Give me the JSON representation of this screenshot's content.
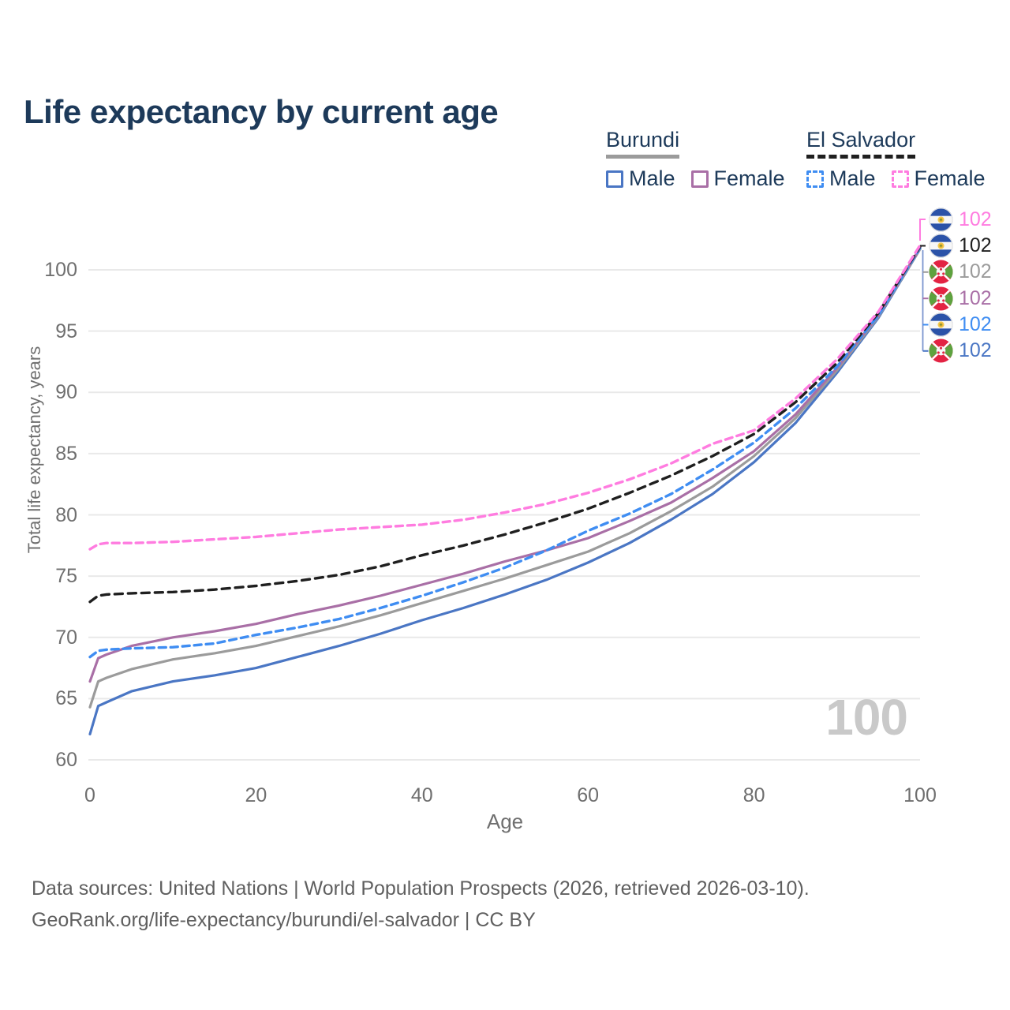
{
  "title": "Life expectancy by current age",
  "legend": {
    "groups": [
      {
        "label": "Burundi",
        "line_style": "solid",
        "line_color": "#9b9b9b",
        "items": [
          {
            "label": "Male",
            "color": "#4a76c4",
            "style": "solid"
          },
          {
            "label": "Female",
            "color": "#a96fa6",
            "style": "solid"
          }
        ]
      },
      {
        "label": "El Salvador",
        "line_style": "dashed",
        "line_color": "#1f1f1f",
        "items": [
          {
            "label": "Male",
            "color": "#3f8df2",
            "style": "dashed"
          },
          {
            "label": "Female",
            "color": "#ff7ce0",
            "style": "dashed"
          }
        ]
      }
    ]
  },
  "chart_data": {
    "type": "line",
    "title": "Life expectancy by current age",
    "xlabel": "Age",
    "ylabel": "Total life expectancy, years",
    "xlim": [
      0,
      100
    ],
    "ylim": [
      60,
      103
    ],
    "x_ticks": [
      0,
      20,
      40,
      60,
      80,
      100
    ],
    "y_ticks": [
      60,
      65,
      70,
      75,
      80,
      85,
      90,
      95,
      100
    ],
    "grid": "horizontal-only",
    "ages": [
      0,
      1,
      2,
      5,
      10,
      15,
      20,
      25,
      30,
      35,
      40,
      45,
      50,
      55,
      60,
      65,
      70,
      75,
      80,
      85,
      90,
      95,
      100
    ],
    "series": [
      {
        "id": "burundi-male",
        "name": "Burundi Male",
        "country": "Burundi",
        "sex": "Male",
        "color": "#4a76c4",
        "dash": null,
        "values": [
          62.1,
          64.4,
          64.7,
          65.6,
          66.4,
          66.9,
          67.5,
          68.4,
          69.3,
          70.3,
          71.4,
          72.4,
          73.5,
          74.7,
          76.1,
          77.7,
          79.6,
          81.7,
          84.3,
          87.5,
          91.6,
          96.1,
          101.7
        ]
      },
      {
        "id": "burundi-total",
        "name": "Burundi",
        "country": "Burundi",
        "sex": "Both",
        "color": "#9b9b9b",
        "dash": null,
        "values": [
          64.3,
          66.4,
          66.7,
          67.4,
          68.2,
          68.7,
          69.3,
          70.1,
          70.9,
          71.8,
          72.8,
          73.8,
          74.8,
          75.9,
          77.0,
          78.5,
          80.3,
          82.3,
          84.8,
          87.9,
          91.8,
          96.2,
          101.7
        ]
      },
      {
        "id": "burundi-female",
        "name": "Burundi Female",
        "country": "Burundi",
        "sex": "Female",
        "color": "#a96fa6",
        "dash": null,
        "values": [
          66.4,
          68.3,
          68.6,
          69.3,
          70.0,
          70.5,
          71.1,
          71.9,
          72.6,
          73.4,
          74.3,
          75.2,
          76.2,
          77.1,
          78.1,
          79.5,
          81.0,
          83.0,
          85.2,
          88.2,
          92.0,
          96.3,
          101.8
        ]
      },
      {
        "id": "el-salvador-male",
        "name": "El Salvador Male",
        "country": "El Salvador",
        "sex": "Male",
        "color": "#3f8df2",
        "dash": "9 6",
        "values": [
          68.4,
          68.9,
          69.0,
          69.1,
          69.2,
          69.5,
          70.2,
          70.8,
          71.5,
          72.4,
          73.4,
          74.5,
          75.7,
          77.1,
          78.7,
          80.1,
          81.7,
          83.7,
          85.9,
          88.7,
          92.1,
          96.3,
          101.8
        ]
      },
      {
        "id": "el-salvador-total",
        "name": "El Salvador",
        "country": "El Salvador",
        "sex": "Both",
        "color": "#1f1f1f",
        "dash": "10 7",
        "values": [
          72.9,
          73.4,
          73.5,
          73.6,
          73.7,
          73.9,
          74.2,
          74.6,
          75.1,
          75.8,
          76.7,
          77.5,
          78.4,
          79.4,
          80.5,
          81.8,
          83.2,
          84.8,
          86.6,
          89.2,
          92.4,
          96.5,
          101.9
        ]
      },
      {
        "id": "el-salvador-female",
        "name": "El Salvador Female",
        "country": "El Salvador",
        "sex": "Female",
        "color": "#ff7ce0",
        "dash": "9 6",
        "values": [
          77.2,
          77.6,
          77.7,
          77.7,
          77.8,
          78.0,
          78.2,
          78.5,
          78.8,
          79.0,
          79.2,
          79.6,
          80.2,
          80.9,
          81.8,
          82.9,
          84.2,
          85.8,
          86.9,
          89.5,
          92.7,
          96.6,
          102.0
        ]
      }
    ],
    "end_labels": [
      {
        "series": "El Salvador Female",
        "flag": "sv",
        "value": "102",
        "color": "#ff7ce0"
      },
      {
        "series": "El Salvador",
        "flag": "sv",
        "value": "102",
        "color": "#1f1f1f"
      },
      {
        "series": "Burundi",
        "flag": "bi",
        "value": "102",
        "color": "#9b9b9b"
      },
      {
        "series": "Burundi Female",
        "flag": "bi",
        "value": "102",
        "color": "#a96fa6"
      },
      {
        "series": "El Salvador Male",
        "flag": "sv",
        "value": "102",
        "color": "#3f8df2"
      },
      {
        "series": "Burundi Male",
        "flag": "bi",
        "value": "102",
        "color": "#4a76c4"
      }
    ],
    "watermark": "100"
  },
  "footer": {
    "line1": "Data sources: United Nations | World Population Prospects (2026, retrieved 2026-03-10).",
    "line2": "GeoRank.org/life-expectancy/burundi/el-salvador | CC BY"
  }
}
